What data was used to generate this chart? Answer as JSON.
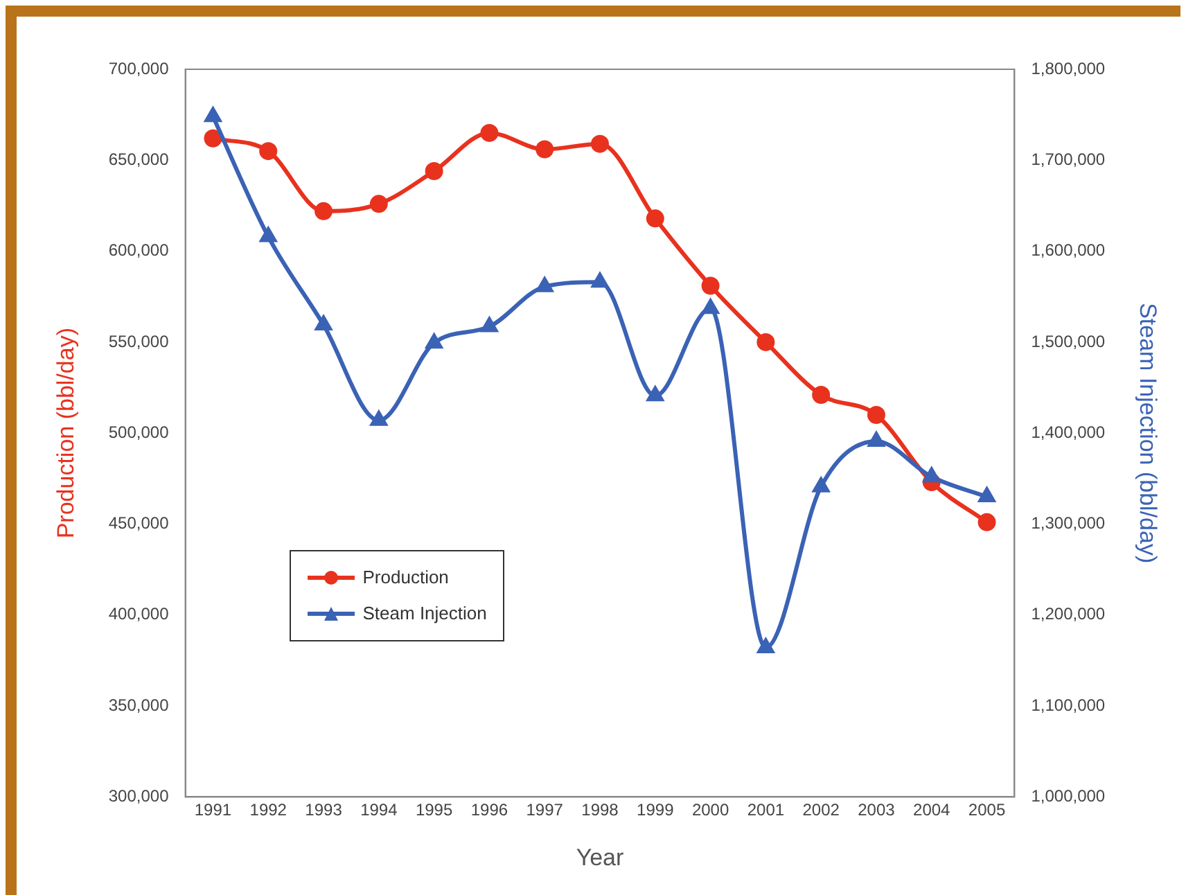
{
  "chart_data": {
    "type": "line",
    "xlabel": "Year",
    "ylabel": "Production (bbl/day)",
    "y2label": "Steam Injection (bbl/day)",
    "categories": [
      "1991",
      "1992",
      "1993",
      "1994",
      "1995",
      "1996",
      "1997",
      "1998",
      "1999",
      "2000",
      "2001",
      "2002",
      "2003",
      "2004",
      "2005"
    ],
    "series": [
      {
        "name": "Production",
        "color": "#e8321e",
        "marker": "circle",
        "values": [
          662000,
          655000,
          622000,
          626000,
          644000,
          665000,
          656000,
          659000,
          618000,
          581000,
          550000,
          521000,
          510000,
          473000,
          451000
        ]
      },
      {
        "name": "Steam Injection",
        "color": "#3a62b5",
        "marker": "triangle",
        "axis": "y2",
        "values": [
          1748000,
          1616000,
          1519000,
          1414000,
          1499000,
          1517000,
          1561000,
          1566000,
          1441000,
          1537000,
          1164000,
          1341000,
          1391000,
          1352000,
          1330000
        ]
      }
    ],
    "ylim": [
      300000,
      700000
    ],
    "yticks": [
      {
        "value": 300000,
        "label": "300,000"
      },
      {
        "value": 350000,
        "label": "350,000"
      },
      {
        "value": 400000,
        "label": "400,000"
      },
      {
        "value": 450000,
        "label": "450,000"
      },
      {
        "value": 500000,
        "label": "500,000"
      },
      {
        "value": 550000,
        "label": "550,000"
      },
      {
        "value": 600000,
        "label": "600,000"
      },
      {
        "value": 650000,
        "label": "650,000"
      },
      {
        "value": 700000,
        "label": "700,000"
      }
    ],
    "y2lim": [
      1000000,
      1800000
    ],
    "y2ticks": [
      {
        "value": 1000000,
        "label": "1,000,000"
      },
      {
        "value": 1100000,
        "label": "1,100,000"
      },
      {
        "value": 1200000,
        "label": "1,200,000"
      },
      {
        "value": 1300000,
        "label": "1,300,000"
      },
      {
        "value": 1400000,
        "label": "1,400,000"
      },
      {
        "value": 1500000,
        "label": "1,500,000"
      },
      {
        "value": 1600000,
        "label": "1,600,000"
      },
      {
        "value": 1700000,
        "label": "1,700,000"
      },
      {
        "value": 1800000,
        "label": "1,800,000"
      }
    ],
    "grid": false,
    "legend": "bottom left",
    "line_style": "solid"
  }
}
